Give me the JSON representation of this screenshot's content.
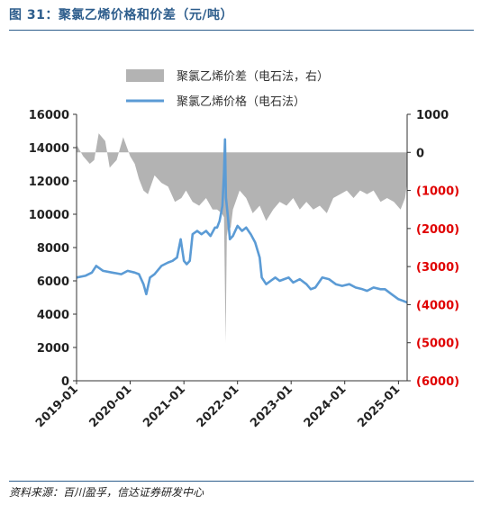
{
  "figure": {
    "title": "图 31：聚氯乙烯价格和价差（元/吨）",
    "source": "资料来源：百川盈孚，信达证券研发中心"
  },
  "colors": {
    "price_line": "#5b9bd5",
    "spread_area": "#b3b3b3",
    "negative_tick": "#e00000",
    "title_blue": "#2d5d8c"
  },
  "chart_data": {
    "type": "line",
    "legend_placement": "top-center",
    "grid": false,
    "x_axis": {
      "type": "date",
      "range": [
        "2019-01-01",
        "2025-03-01"
      ],
      "tick_labels": [
        "2019-01",
        "2020-01",
        "2021-01",
        "2022-01",
        "2023-01",
        "2024-01",
        "2025-01"
      ],
      "tick_dates": [
        "2019-01-01",
        "2020-01-01",
        "2021-01-01",
        "2022-01-01",
        "2023-01-01",
        "2024-01-01",
        "2025-01-01"
      ]
    },
    "y_left": {
      "range": [
        0,
        16000
      ],
      "ticks": [
        0,
        2000,
        4000,
        6000,
        8000,
        10000,
        12000,
        14000,
        16000
      ],
      "tick_labels": [
        "0",
        "2000",
        "4000",
        "6000",
        "8000",
        "10000",
        "12000",
        "14000",
        "16000"
      ]
    },
    "y_right": {
      "range": [
        -6000,
        1000
      ],
      "ticks": [
        1000,
        0,
        -1000,
        -2000,
        -3000,
        -4000,
        -5000,
        -6000
      ],
      "tick_labels": [
        "1000",
        "0",
        "(1000)",
        "(2000)",
        "(3000)",
        "(4000)",
        "(5000)",
        "(6000)"
      ]
    },
    "series": [
      {
        "name": "聚氯乙烯价差（电石法，右）",
        "chart_type": "area",
        "axis": "right",
        "x": [
          "2019-01-01",
          "2019-02-15",
          "2019-04-01",
          "2019-05-01",
          "2019-06-01",
          "2019-07-15",
          "2019-08-15",
          "2019-10-01",
          "2019-11-15",
          "2020-01-01",
          "2020-02-01",
          "2020-03-01",
          "2020-04-01",
          "2020-05-01",
          "2020-06-15",
          "2020-08-01",
          "2020-09-15",
          "2020-11-01",
          "2020-12-15",
          "2021-01-15",
          "2021-03-01",
          "2021-04-15",
          "2021-06-01",
          "2021-07-15",
          "2021-08-15",
          "2021-09-15",
          "2021-10-01",
          "2021-10-12",
          "2021-10-20",
          "2021-11-01",
          "2021-11-15",
          "2021-12-01",
          "2022-01-15",
          "2022-03-01",
          "2022-04-15",
          "2022-06-01",
          "2022-07-15",
          "2022-09-01",
          "2022-10-15",
          "2022-12-01",
          "2023-01-15",
          "2023-03-01",
          "2023-04-15",
          "2023-06-01",
          "2023-07-15",
          "2023-09-01",
          "2023-10-15",
          "2023-12-01",
          "2024-01-15",
          "2024-03-01",
          "2024-04-15",
          "2024-06-01",
          "2024-07-15",
          "2024-09-01",
          "2024-10-15",
          "2024-12-01",
          "2025-01-15",
          "2025-02-15",
          "2025-03-01"
        ],
        "values": [
          200,
          -100,
          -300,
          -200,
          500,
          300,
          -400,
          -200,
          400,
          -100,
          -300,
          -700,
          -1000,
          -1100,
          -600,
          -800,
          -900,
          -1300,
          -1200,
          -1000,
          -1300,
          -1400,
          -1200,
          -1500,
          -1500,
          -1600,
          -1700,
          -5000,
          -2200,
          -1900,
          -2000,
          -1500,
          -1000,
          -1200,
          -1600,
          -1400,
          -1800,
          -1500,
          -1300,
          -1400,
          -1200,
          -1500,
          -1300,
          -1500,
          -1400,
          -1600,
          -1200,
          -1100,
          -1000,
          -1200,
          -1000,
          -1100,
          -1000,
          -1300,
          -1200,
          -1300,
          -1500,
          -1200,
          -800
        ]
      },
      {
        "name": "聚氯乙烯价格（电石法）",
        "chart_type": "line",
        "axis": "left",
        "x": [
          "2019-01-01",
          "2019-03-01",
          "2019-04-15",
          "2019-05-15",
          "2019-07-01",
          "2019-09-01",
          "2019-11-01",
          "2019-12-15",
          "2020-02-01",
          "2020-03-01",
          "2020-04-01",
          "2020-04-20",
          "2020-05-15",
          "2020-06-15",
          "2020-08-01",
          "2020-09-15",
          "2020-10-15",
          "2020-11-15",
          "2020-12-10",
          "2021-01-01",
          "2021-01-20",
          "2021-02-10",
          "2021-03-01",
          "2021-04-01",
          "2021-05-01",
          "2021-06-01",
          "2021-07-01",
          "2021-08-01",
          "2021-08-15",
          "2021-09-01",
          "2021-09-20",
          "2021-10-01",
          "2021-10-08",
          "2021-10-14",
          "2021-10-20",
          "2021-10-28",
          "2021-11-10",
          "2021-12-01",
          "2022-01-01",
          "2022-02-01",
          "2022-03-01",
          "2022-04-01",
          "2022-05-01",
          "2022-06-01",
          "2022-06-15",
          "2022-07-15",
          "2022-08-15",
          "2022-09-15",
          "2022-10-15",
          "2022-11-15",
          "2022-12-15",
          "2023-01-15",
          "2023-03-01",
          "2023-04-15",
          "2023-05-15",
          "2023-06-15",
          "2023-08-01",
          "2023-09-15",
          "2023-11-01",
          "2023-12-15",
          "2024-02-01",
          "2024-03-15",
          "2024-05-01",
          "2024-06-01",
          "2024-07-15",
          "2024-09-01",
          "2024-10-01",
          "2024-11-15",
          "2025-01-01",
          "2025-02-01",
          "2025-03-01"
        ],
        "values": [
          6200,
          6300,
          6500,
          6900,
          6600,
          6500,
          6400,
          6600,
          6500,
          6400,
          5800,
          5200,
          6200,
          6400,
          6900,
          7100,
          7200,
          7400,
          8500,
          7200,
          7000,
          7200,
          8800,
          9000,
          8800,
          9000,
          8700,
          9200,
          9200,
          9600,
          10500,
          12500,
          14500,
          11000,
          10500,
          9800,
          8500,
          8700,
          9300,
          9000,
          9200,
          8800,
          8300,
          7400,
          6200,
          5800,
          6000,
          6200,
          6000,
          6100,
          6200,
          5900,
          6100,
          5800,
          5500,
          5600,
          6200,
          6100,
          5800,
          5700,
          5800,
          5600,
          5500,
          5400,
          5600,
          5500,
          5500,
          5200,
          4900,
          4800,
          4700
        ]
      }
    ]
  }
}
